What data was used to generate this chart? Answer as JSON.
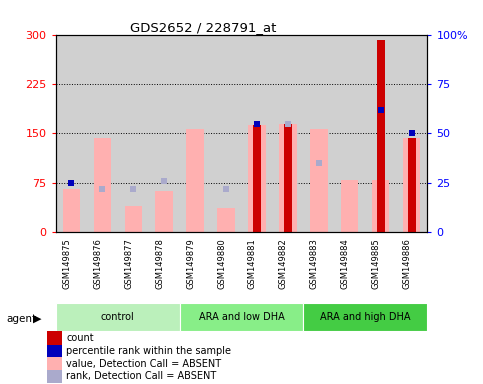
{
  "title": "GDS2652 / 228791_at",
  "samples": [
    "GSM149875",
    "GSM149876",
    "GSM149877",
    "GSM149878",
    "GSM149879",
    "GSM149880",
    "GSM149881",
    "GSM149882",
    "GSM149883",
    "GSM149884",
    "GSM149885",
    "GSM149886"
  ],
  "groups": [
    {
      "label": "control",
      "start": 0,
      "end": 3,
      "color": "#bbf0bb"
    },
    {
      "label": "ARA and low DHA",
      "start": 4,
      "end": 7,
      "color": "#88ee88"
    },
    {
      "label": "ARA and high DHA",
      "start": 8,
      "end": 11,
      "color": "#44cc44"
    }
  ],
  "pink_bars": [
    65,
    143,
    40,
    62,
    157,
    37,
    163,
    165,
    157,
    80,
    80,
    143
  ],
  "red_bars": [
    0,
    0,
    0,
    0,
    0,
    0,
    163,
    165,
    0,
    0,
    292,
    143
  ],
  "blue_squares_val": [
    25,
    0,
    0,
    0,
    0,
    0,
    55,
    0,
    0,
    0,
    62,
    50
  ],
  "purple_squares_val": [
    0,
    22,
    22,
    26,
    0,
    22,
    0,
    55,
    35,
    0,
    0,
    0
  ],
  "ylim_left": [
    0,
    300
  ],
  "ylim_right": [
    0,
    100
  ],
  "yticks_left": [
    0,
    75,
    150,
    225,
    300
  ],
  "yticks_right": [
    0,
    25,
    50,
    75,
    100
  ],
  "yticklabels_left": [
    "0",
    "75",
    "150",
    "225",
    "300"
  ],
  "yticklabels_right": [
    "0",
    "25",
    "50",
    "75",
    "100%"
  ],
  "red_color": "#cc0000",
  "blue_color": "#0000bb",
  "pink_color": "#ffb0b0",
  "purple_color": "#aaaacc",
  "bg_color": "#d0d0d0",
  "grid_color": "#000000",
  "legend_labels": [
    "count",
    "percentile rank within the sample",
    "value, Detection Call = ABSENT",
    "rank, Detection Call = ABSENT"
  ]
}
